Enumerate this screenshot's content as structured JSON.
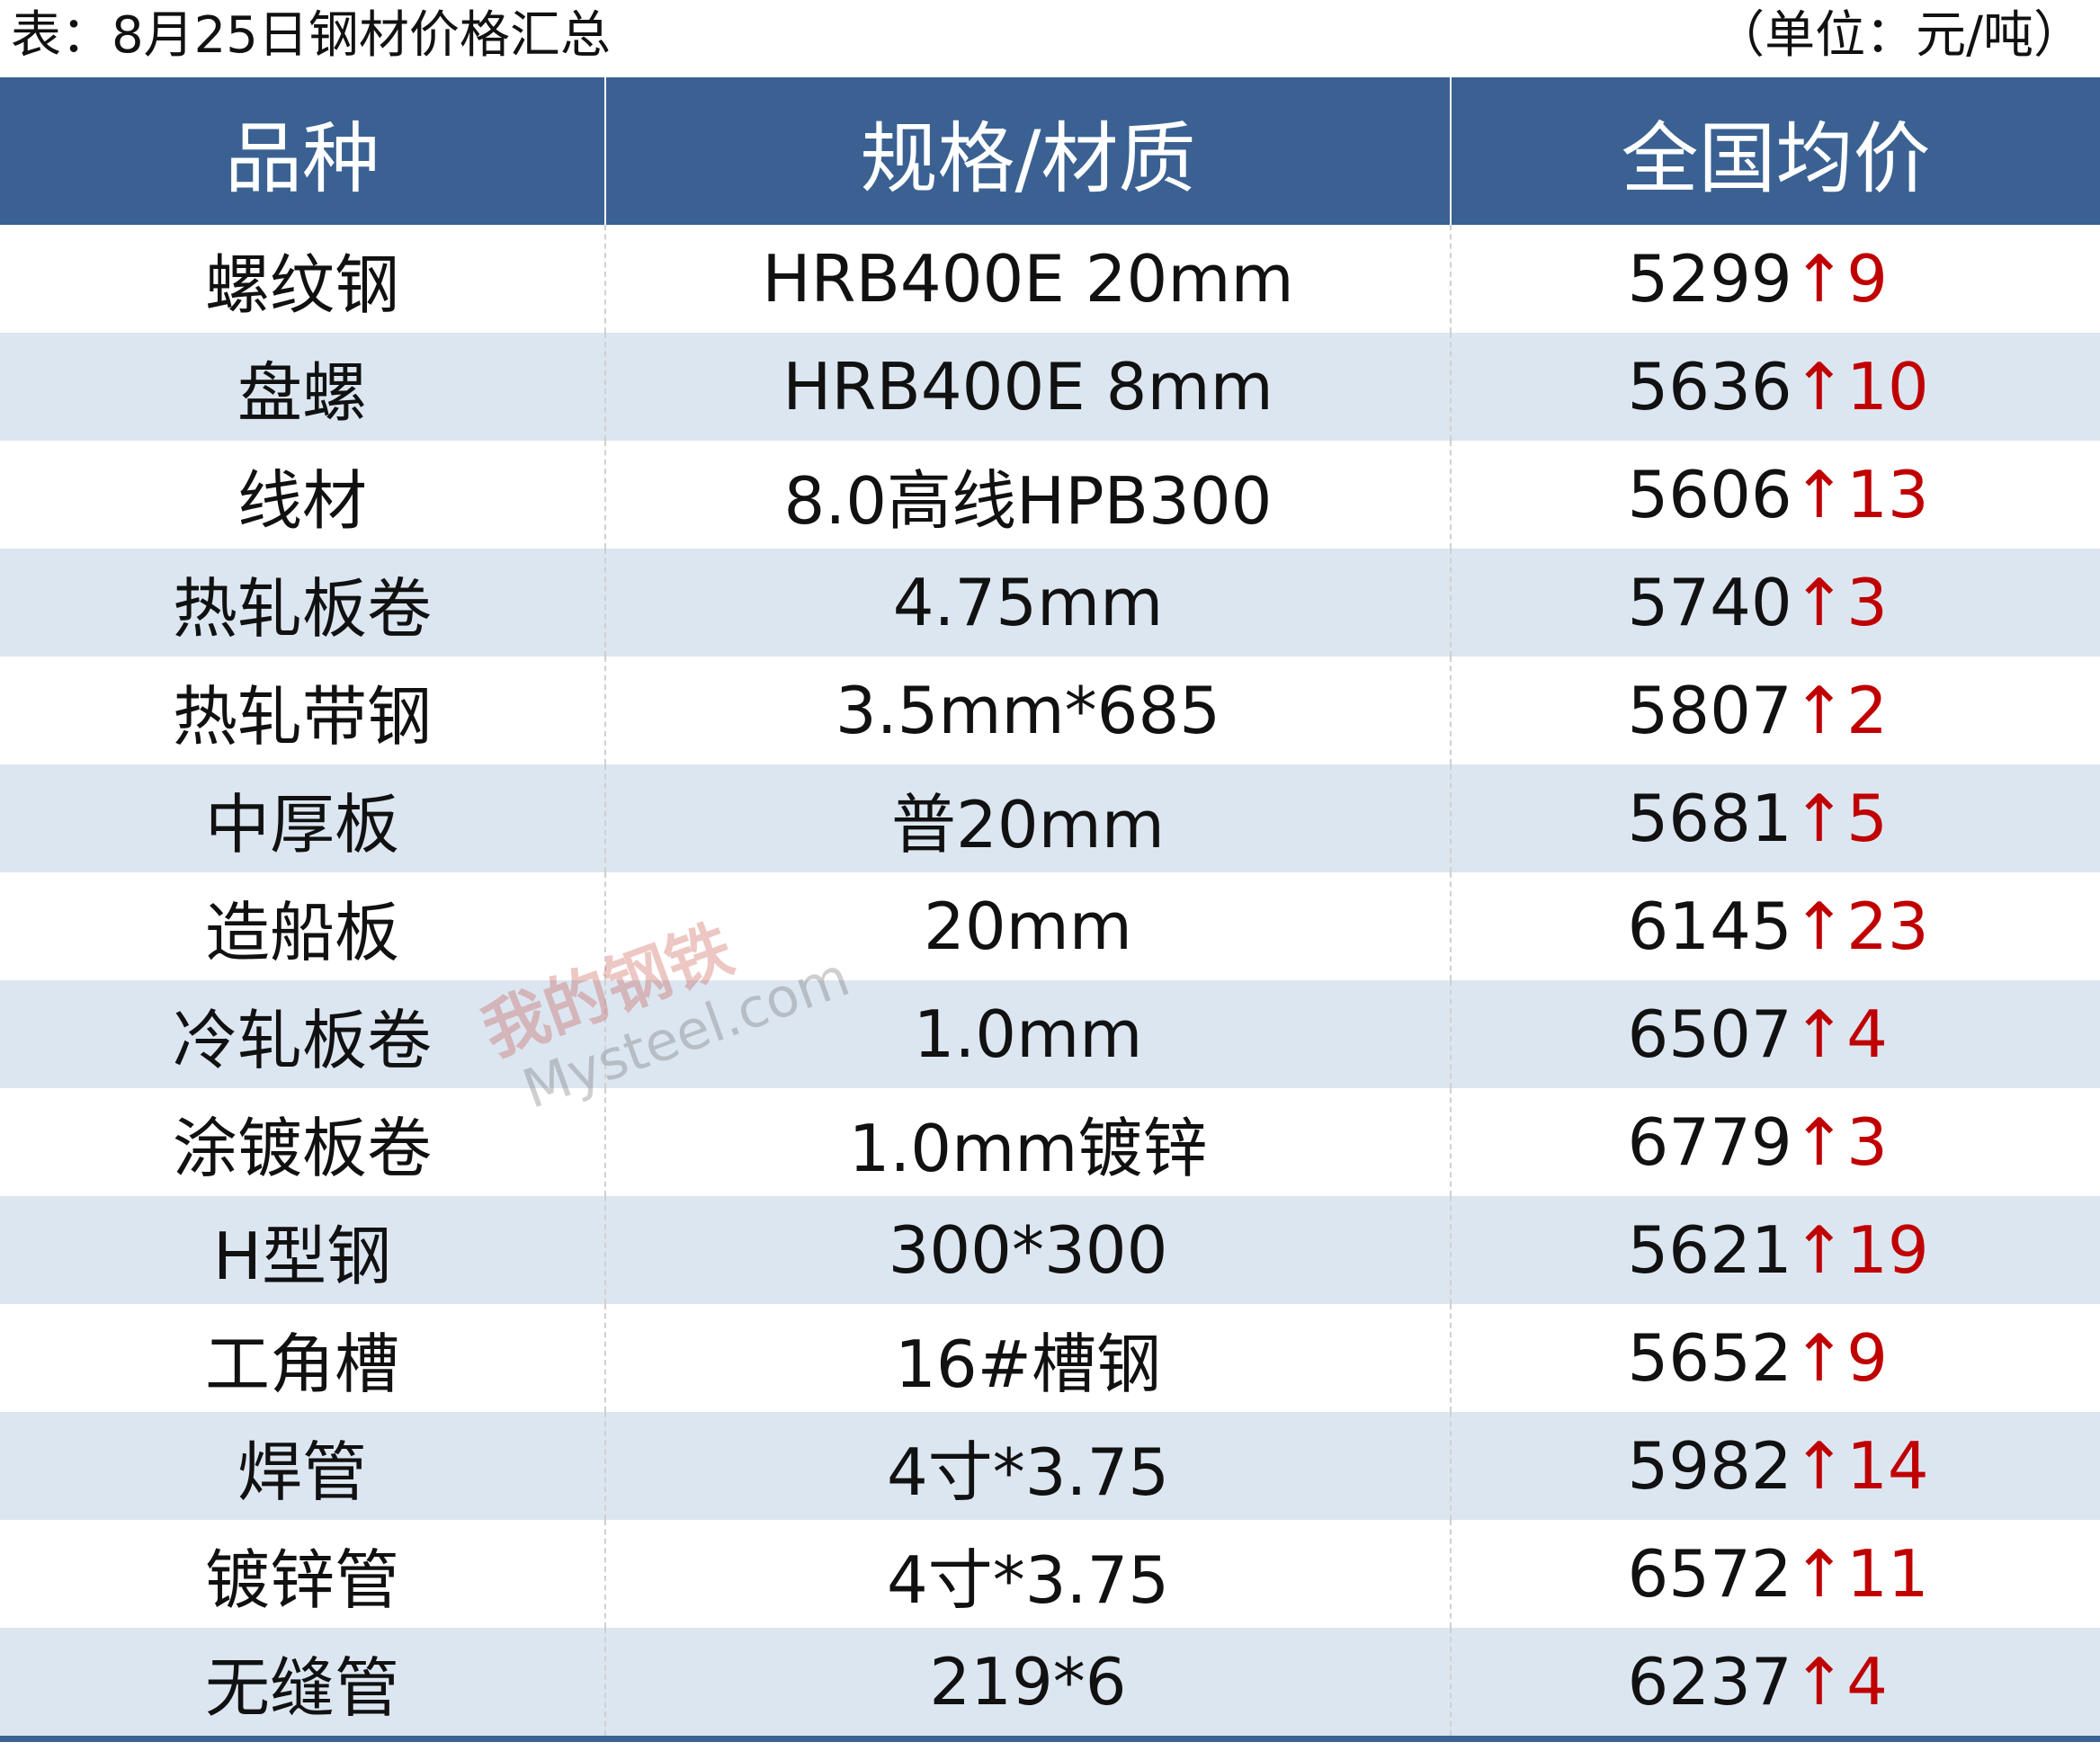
{
  "title": "表：8月25日钢材价格汇总",
  "unit": "（单位：元/吨）",
  "columns": [
    "品种",
    "规格/材质",
    "全国均价"
  ],
  "colors": {
    "header_bg": "#3a6192",
    "alt_row": "#dce6f1",
    "up": "#c00000"
  },
  "watermark": {
    "cn": "我的钢铁",
    "en": "Mysteel.com"
  },
  "rows": [
    {
      "name": "螺纹钢",
      "spec": "HRB400E 20mm",
      "price": "5299",
      "arrow": "↑",
      "change": "9"
    },
    {
      "name": "盘螺",
      "spec": "HRB400E 8mm",
      "price": "5636",
      "arrow": "↑",
      "change": "10"
    },
    {
      "name": "线材",
      "spec": "8.0高线HPB300",
      "price": "5606",
      "arrow": "↑",
      "change": "13"
    },
    {
      "name": "热轧板卷",
      "spec": "4.75mm",
      "price": "5740",
      "arrow": "↑",
      "change": "3"
    },
    {
      "name": "热轧带钢",
      "spec": "3.5mm*685",
      "price": "5807",
      "arrow": "↑",
      "change": "2"
    },
    {
      "name": "中厚板",
      "spec": "普20mm",
      "price": "5681",
      "arrow": "↑",
      "change": "5"
    },
    {
      "name": "造船板",
      "spec": "20mm",
      "price": "6145",
      "arrow": "↑",
      "change": "23"
    },
    {
      "name": "冷轧板卷",
      "spec": "1.0mm",
      "price": "6507",
      "arrow": "↑",
      "change": "4"
    },
    {
      "name": "涂镀板卷",
      "spec": "1.0mm镀锌",
      "price": "6779",
      "arrow": "↑",
      "change": "3"
    },
    {
      "name": "H型钢",
      "spec": "300*300",
      "price": "5621",
      "arrow": "↑",
      "change": "19"
    },
    {
      "name": "工角槽",
      "spec": "16#槽钢",
      "price": "5652",
      "arrow": "↑",
      "change": "9"
    },
    {
      "name": "焊管",
      "spec": "4寸*3.75",
      "price": "5982",
      "arrow": "↑",
      "change": "14"
    },
    {
      "name": "镀锌管",
      "spec": "4寸*3.75",
      "price": "6572",
      "arrow": "↑",
      "change": "11"
    },
    {
      "name": "无缝管",
      "spec": "219*6",
      "price": "6237",
      "arrow": "↑",
      "change": "4"
    }
  ]
}
